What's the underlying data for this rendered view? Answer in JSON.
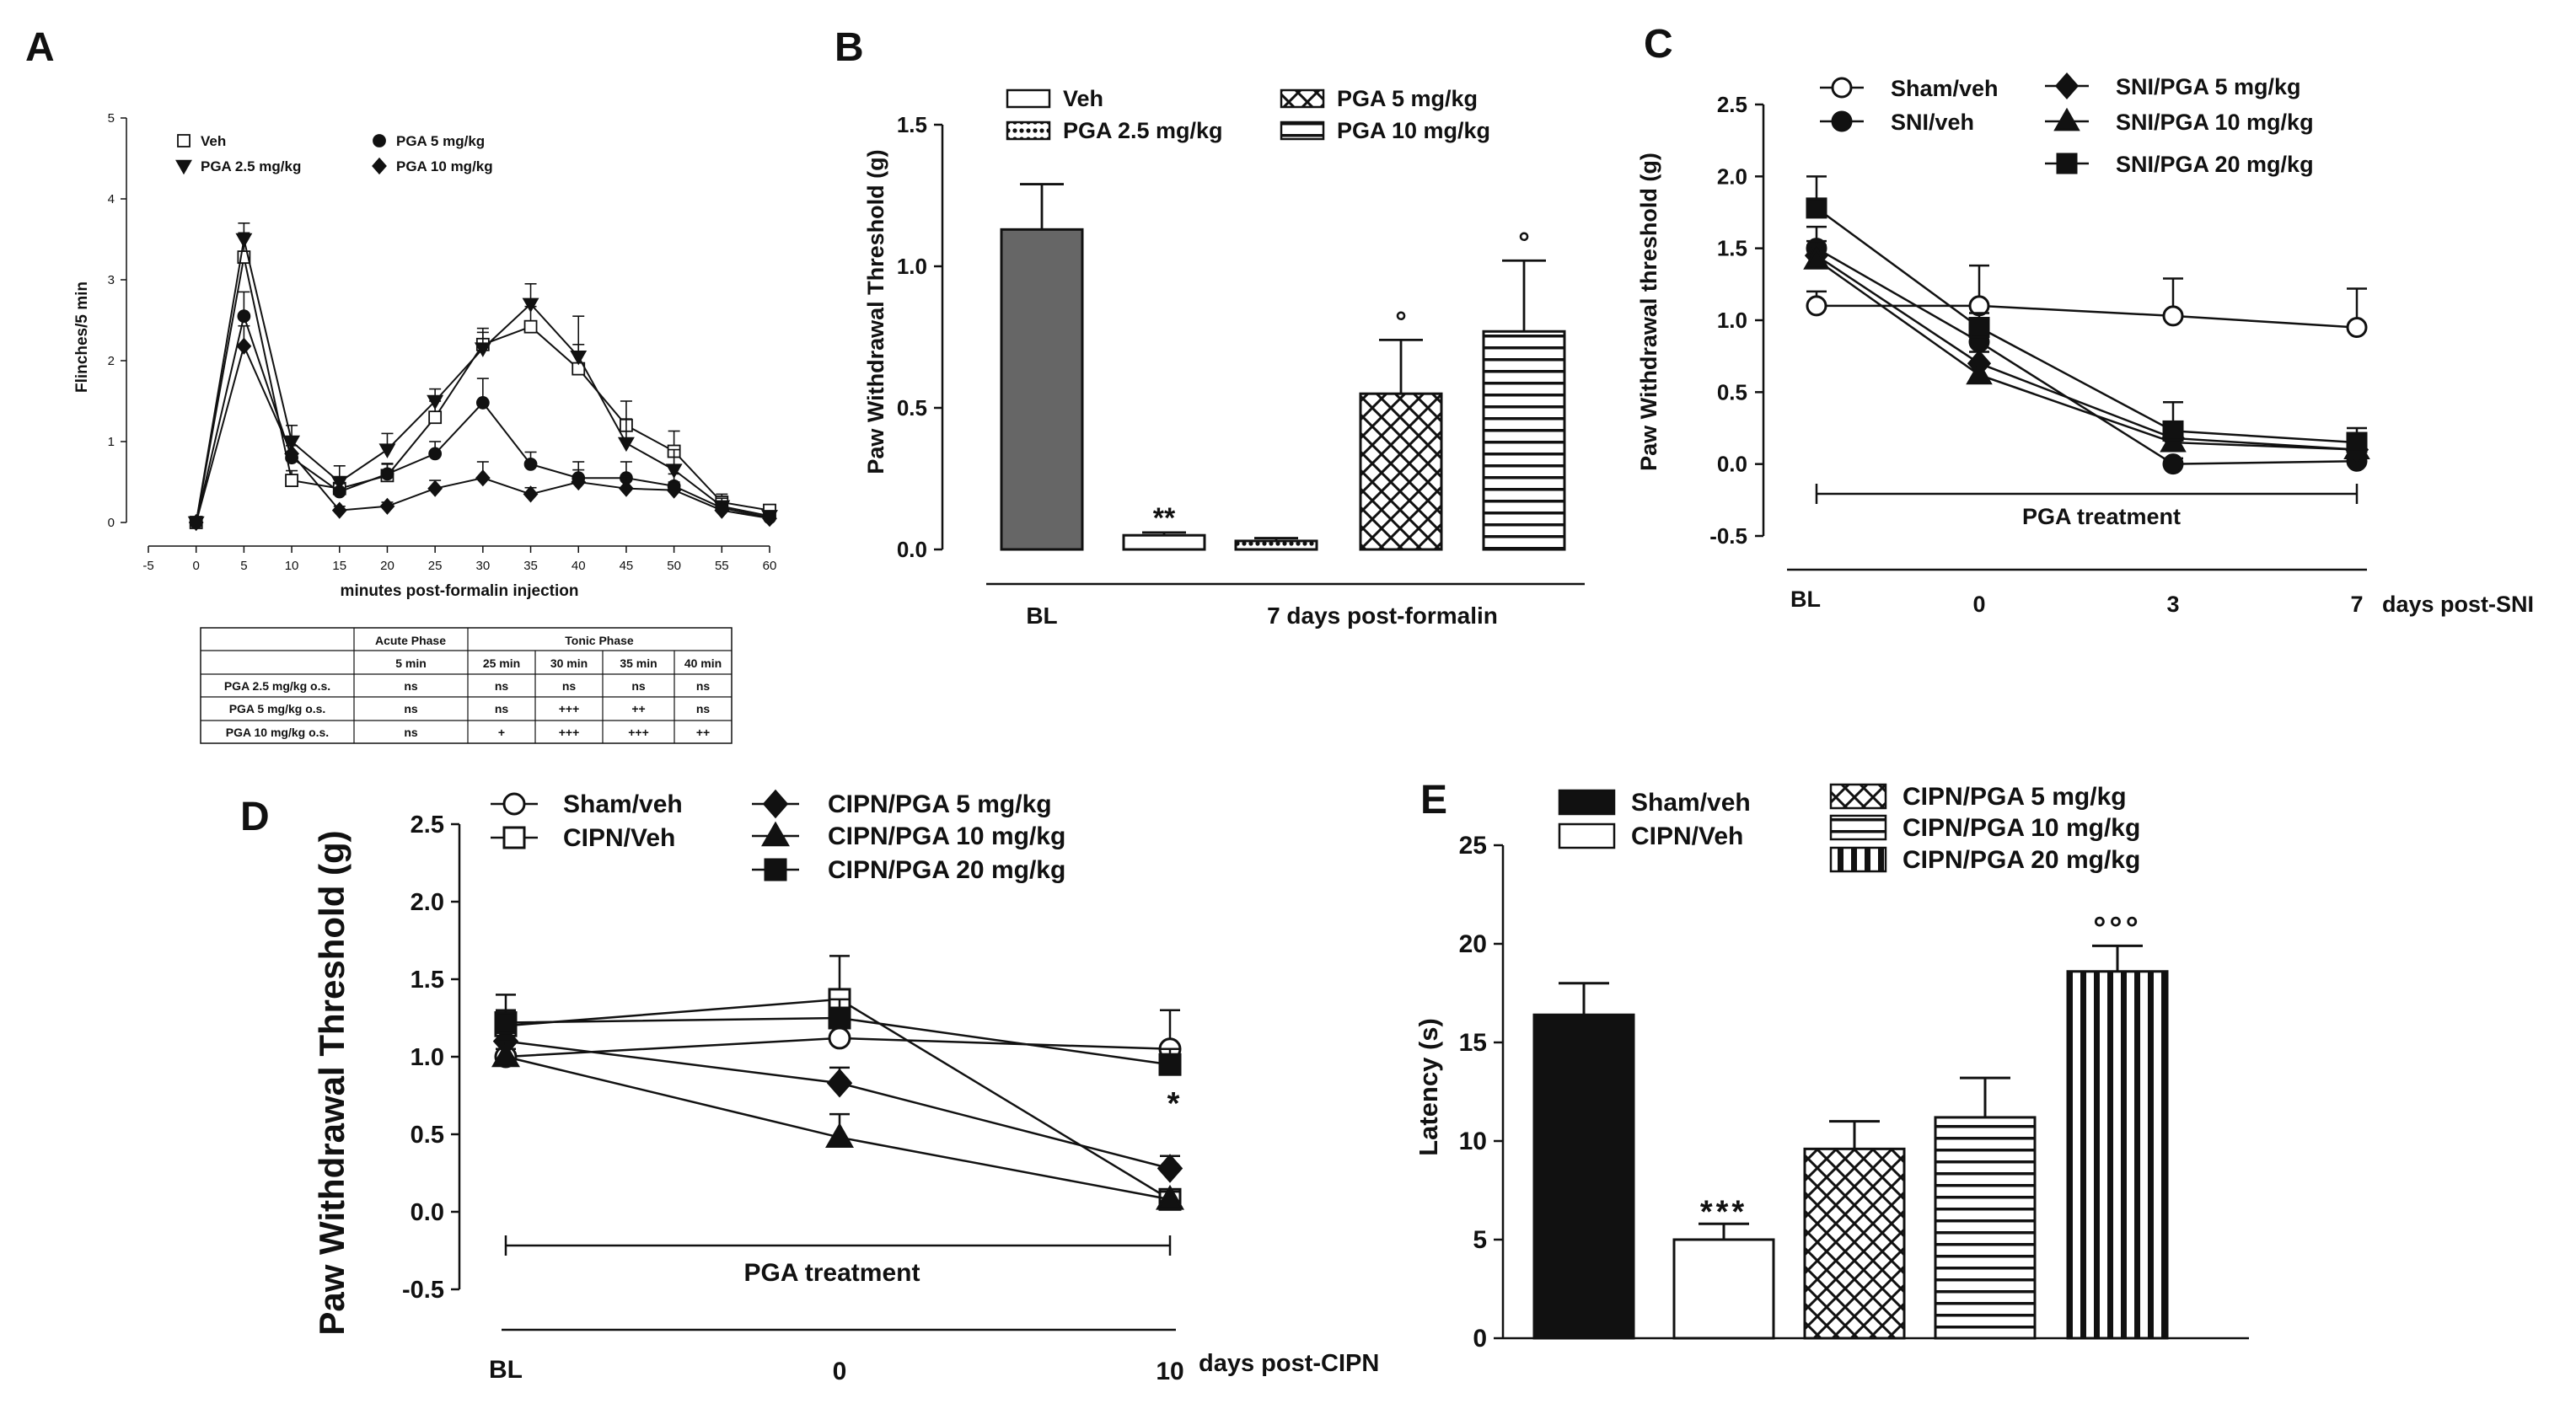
{
  "figure": {
    "panel_letters": [
      "A",
      "B",
      "C",
      "D",
      "E"
    ]
  },
  "chart_data": [
    {
      "panel": "A",
      "type": "line",
      "xlabel": "minutes post-formalin injection",
      "ylabel": "Flinches/5 min",
      "xlim": [
        -5,
        60
      ],
      "ylim": [
        0,
        5
      ],
      "x_ticks": [
        -5,
        0,
        5,
        10,
        15,
        20,
        25,
        30,
        35,
        40,
        45,
        50,
        55,
        60
      ],
      "y_ticks": [
        0,
        1,
        2,
        3,
        4,
        5
      ],
      "legend": "top-left",
      "series": [
        {
          "name": "Veh",
          "marker": "square-open",
          "x": [
            0,
            5,
            10,
            15,
            20,
            25,
            30,
            35,
            40,
            45,
            50,
            55,
            60
          ],
          "y": [
            0,
            3.28,
            0.52,
            0.42,
            0.58,
            1.3,
            2.2,
            2.42,
            1.9,
            1.2,
            0.88,
            0.25,
            0.15
          ],
          "err": [
            0,
            0.3,
            0.12,
            0.12,
            0.15,
            0.2,
            0.2,
            0.25,
            0.3,
            0.3,
            0.25,
            0.1,
            0.05
          ]
        },
        {
          "name": "PGA 2.5 mg/kg",
          "marker": "triangle-down",
          "x": [
            0,
            5,
            10,
            15,
            20,
            25,
            30,
            35,
            40,
            45,
            50,
            55,
            60
          ],
          "y": [
            0,
            3.5,
            1.0,
            0.5,
            0.9,
            1.5,
            2.15,
            2.7,
            2.05,
            0.98,
            0.65,
            0.2,
            0.08
          ],
          "err": [
            0,
            0.2,
            0.2,
            0.2,
            0.2,
            0.15,
            0.2,
            0.25,
            0.5,
            0.3,
            0.25,
            0.1,
            0.05
          ]
        },
        {
          "name": "PGA 5 mg/kg",
          "marker": "circle",
          "x": [
            0,
            5,
            10,
            15,
            20,
            25,
            30,
            35,
            40,
            45,
            50,
            55,
            60
          ],
          "y": [
            0,
            2.55,
            0.8,
            0.38,
            0.6,
            0.85,
            1.48,
            0.72,
            0.55,
            0.55,
            0.45,
            0.18,
            0.06
          ],
          "err": [
            0,
            0.3,
            0.15,
            0.1,
            0.12,
            0.15,
            0.3,
            0.15,
            0.2,
            0.2,
            0.15,
            0.05,
            0.04
          ]
        },
        {
          "name": "PGA 10 mg/kg",
          "marker": "diamond",
          "x": [
            0,
            5,
            10,
            15,
            20,
            25,
            30,
            35,
            40,
            45,
            50,
            55,
            60
          ],
          "y": [
            0,
            2.18,
            0.85,
            0.15,
            0.2,
            0.42,
            0.55,
            0.35,
            0.5,
            0.42,
            0.4,
            0.15,
            0.05
          ],
          "err": [
            0,
            0.25,
            0.2,
            0.05,
            0.05,
            0.1,
            0.2,
            0.08,
            0.15,
            0.15,
            0.1,
            0.05,
            0.03
          ]
        }
      ],
      "table": {
        "group_headers": [
          "Acute Phase",
          "Tonic Phase"
        ],
        "columns": [
          "",
          "5 min",
          "25 min",
          "30 min",
          "35 min",
          "40 min"
        ],
        "rows": [
          [
            "PGA 2.5 mg/kg o.s.",
            "ns",
            "ns",
            "ns",
            "ns",
            "ns"
          ],
          [
            "PGA 5 mg/kg o.s.",
            "ns",
            "ns",
            "+++",
            "++",
            "ns"
          ],
          [
            "PGA 10 mg/kg o.s.",
            "ns",
            "+",
            "+++",
            "+++",
            "++"
          ]
        ]
      }
    },
    {
      "panel": "B",
      "type": "bar",
      "ylabel": "Paw Withdrawal Threshold (g)",
      "ylim": [
        0,
        1.5
      ],
      "y_ticks": [
        "0.0",
        "0.5",
        "1.0",
        "1.5"
      ],
      "group_labels": [
        "BL",
        "7 days post-formalin"
      ],
      "legend": "top",
      "bars": [
        {
          "name": "BL",
          "value": 1.13,
          "err": 0.16,
          "pattern": "gray",
          "annotation": ""
        },
        {
          "name": "Veh",
          "value": 0.05,
          "err": 0.01,
          "pattern": "white",
          "annotation": "**"
        },
        {
          "name": "PGA 2.5 mg/kg",
          "value": 0.03,
          "err": 0.01,
          "pattern": "dots",
          "annotation": ""
        },
        {
          "name": "PGA 5 mg/kg",
          "value": 0.55,
          "err": 0.19,
          "pattern": "crosshatch",
          "annotation": "°"
        },
        {
          "name": "PGA 10 mg/kg",
          "value": 0.77,
          "err": 0.25,
          "pattern": "horizontal",
          "annotation": "°"
        }
      ],
      "legend_entries": [
        "Veh",
        "PGA 2.5 mg/kg",
        "PGA 5 mg/kg",
        "PGA 10 mg/kg"
      ]
    },
    {
      "panel": "C",
      "type": "line",
      "ylabel": "Paw Withdrawal threshold (g)",
      "ylim": [
        -0.5,
        2.5
      ],
      "y_ticks": [
        "-0.5",
        "0.0",
        "0.5",
        "1.0",
        "1.5",
        "2.0",
        "2.5"
      ],
      "categories": [
        "BL",
        "0",
        "3",
        "7"
      ],
      "x_suffix": "days post-SNI",
      "bracket_label": "PGA treatment",
      "legend": "top",
      "series": [
        {
          "name": "Sham/veh",
          "marker": "circle-open",
          "values": [
            1.1,
            1.1,
            1.03,
            0.95
          ],
          "err": [
            0.1,
            0.28,
            0.26,
            0.27
          ]
        },
        {
          "name": "SNI/veh",
          "marker": "circle",
          "values": [
            1.5,
            0.85,
            0.0,
            0.02
          ],
          "err": [
            0.15,
            0.1,
            0.04,
            0.04
          ]
        },
        {
          "name": "SNI/PGA 5 mg/kg",
          "marker": "diamond",
          "values": [
            1.45,
            0.7,
            0.18,
            0.1
          ],
          "err": [
            0.1,
            0.08,
            0.08,
            0.08
          ]
        },
        {
          "name": "SNI/PGA 10 mg/kg",
          "marker": "triangle",
          "values": [
            1.42,
            0.62,
            0.15,
            0.1
          ],
          "err": [
            0.1,
            0.08,
            0.06,
            0.06
          ]
        },
        {
          "name": "SNI/PGA 20 mg/kg",
          "marker": "square",
          "values": [
            1.78,
            0.95,
            0.23,
            0.15
          ],
          "err": [
            0.22,
            0.1,
            0.2,
            0.1
          ]
        }
      ]
    },
    {
      "panel": "D",
      "type": "line",
      "ylabel": "Paw Withdrawal Threshold (g)",
      "ylim": [
        -0.5,
        2.5
      ],
      "y_ticks": [
        "-0.5",
        "0.0",
        "0.5",
        "1.0",
        "1.5",
        "2.0",
        "2.5"
      ],
      "categories": [
        "BL",
        "0",
        "10"
      ],
      "x_suffix": "days post-CIPN",
      "bracket_label": "PGA treatment",
      "legend": "top",
      "annotation": "*",
      "series": [
        {
          "name": "Sham/veh",
          "marker": "circle-open",
          "values": [
            1.0,
            1.12,
            1.05
          ],
          "err": [
            0.05,
            0.12,
            0.25
          ]
        },
        {
          "name": "CIPN/Veh",
          "marker": "square-open",
          "values": [
            1.2,
            1.37,
            0.08
          ],
          "err": [
            0.2,
            0.28,
            0.05
          ]
        },
        {
          "name": "CIPN/PGA 5 mg/kg",
          "marker": "diamond",
          "values": [
            1.1,
            0.83,
            0.28
          ],
          "err": [
            0.1,
            0.1,
            0.08
          ]
        },
        {
          "name": "CIPN/PGA 10 mg/kg",
          "marker": "triangle",
          "values": [
            1.0,
            0.48,
            0.08
          ],
          "err": [
            0.1,
            0.15,
            0.05
          ]
        },
        {
          "name": "CIPN/PGA 20 mg/kg",
          "marker": "square",
          "values": [
            1.22,
            1.25,
            0.95
          ],
          "err": [
            0.08,
            0.12,
            0.1
          ]
        }
      ]
    },
    {
      "panel": "E",
      "type": "bar",
      "ylabel": "Latency (s)",
      "ylim": [
        0,
        25
      ],
      "y_ticks": [
        "0",
        "5",
        "10",
        "15",
        "20",
        "25"
      ],
      "legend": "top",
      "bars": [
        {
          "name": "Sham/veh",
          "value": 16.4,
          "err": 1.6,
          "pattern": "black",
          "annotation": ""
        },
        {
          "name": "CIPN/Veh",
          "value": 5.0,
          "err": 0.8,
          "pattern": "white",
          "annotation": "***"
        },
        {
          "name": "CIPN/PGA 5 mg/kg",
          "value": 9.6,
          "err": 1.4,
          "pattern": "crosshatch",
          "annotation": ""
        },
        {
          "name": "CIPN/PGA 10 mg/kg",
          "value": 11.2,
          "err": 2.0,
          "pattern": "horizontal",
          "annotation": ""
        },
        {
          "name": "CIPN/PGA 20 mg/kg",
          "value": 18.6,
          "err": 1.3,
          "pattern": "vertical",
          "annotation": "°°°"
        }
      ]
    }
  ]
}
